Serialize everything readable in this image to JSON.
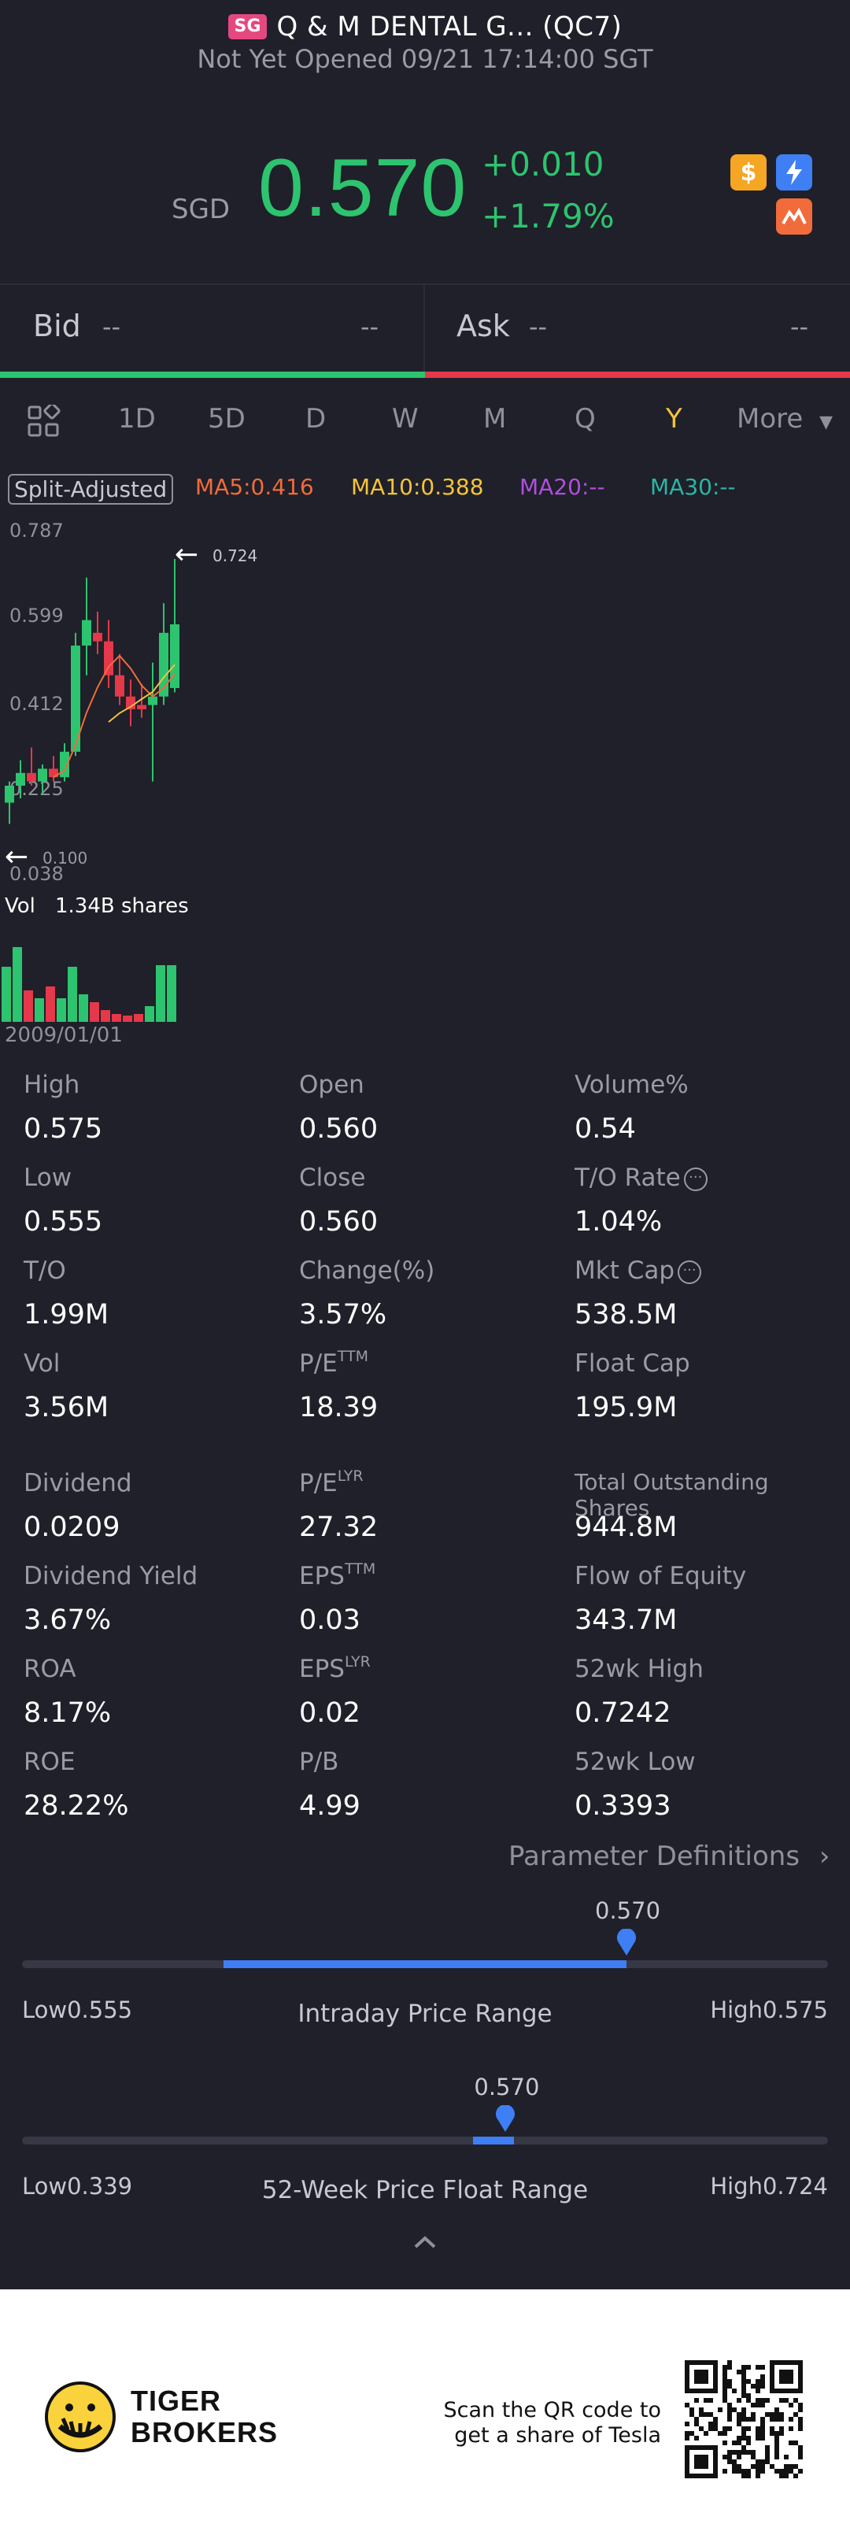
{
  "header": {
    "market_badge": "SG",
    "title": "Q & M DENTAL G... (QC7)",
    "status": "Not Yet Opened 09/21 17:14:00 SGT",
    "currency": "SGD",
    "price": "0.570",
    "change": "+0.010",
    "change_pct": "+1.79%",
    "icons": [
      "dollar-icon",
      "flash-icon",
      "options-icon"
    ]
  },
  "quote": {
    "bid_label": "Bid",
    "bid_price": "--",
    "bid_size": "--",
    "ask_label": "Ask",
    "ask_price": "--",
    "ask_size": "--",
    "bid_color": "#2dc46f",
    "ask_color": "#e5384a"
  },
  "tabs": {
    "items": [
      "1D",
      "5D",
      "D",
      "W",
      "M",
      "Q",
      "Y"
    ],
    "active": "Y",
    "more_label": "More"
  },
  "indicators": {
    "split_label": "Split-Adjusted",
    "ma5": "MA5:0.416",
    "ma10": "MA10:0.388",
    "ma20": "MA20:--",
    "ma30": "MA30:--",
    "ma5_color": "#f26b3a",
    "ma10_color": "#f5c33b",
    "ma20_color": "#b04ee0",
    "ma30_color": "#2bb5a5"
  },
  "chart": {
    "y_labels": [
      "0.787",
      "0.599",
      "0.412",
      "0.225",
      "0.038"
    ],
    "max_marker": "0.724",
    "min_marker": "0.100",
    "vol_label": "Vol",
    "vol_value": "1.34B shares",
    "start_date": "2009/01/01"
  },
  "chart_data": {
    "type": "candlestick",
    "ylim": [
      0.038,
      0.787
    ],
    "candles": [
      {
        "o": 0.15,
        "h": 0.2,
        "l": 0.1,
        "c": 0.19,
        "up": true
      },
      {
        "o": 0.19,
        "h": 0.25,
        "l": 0.16,
        "c": 0.22,
        "up": true
      },
      {
        "o": 0.22,
        "h": 0.28,
        "l": 0.19,
        "c": 0.2,
        "up": false
      },
      {
        "o": 0.2,
        "h": 0.24,
        "l": 0.17,
        "c": 0.23,
        "up": true
      },
      {
        "o": 0.23,
        "h": 0.26,
        "l": 0.2,
        "c": 0.21,
        "up": false
      },
      {
        "o": 0.21,
        "h": 0.29,
        "l": 0.2,
        "c": 0.27,
        "up": true
      },
      {
        "o": 0.27,
        "h": 0.55,
        "l": 0.26,
        "c": 0.52,
        "up": true
      },
      {
        "o": 0.52,
        "h": 0.68,
        "l": 0.45,
        "c": 0.58,
        "up": true
      },
      {
        "o": 0.55,
        "h": 0.6,
        "l": 0.5,
        "c": 0.53,
        "up": false
      },
      {
        "o": 0.53,
        "h": 0.58,
        "l": 0.42,
        "c": 0.45,
        "up": false
      },
      {
        "o": 0.45,
        "h": 0.5,
        "l": 0.38,
        "c": 0.4,
        "up": false
      },
      {
        "o": 0.4,
        "h": 0.44,
        "l": 0.33,
        "c": 0.37,
        "up": false
      },
      {
        "o": 0.37,
        "h": 0.43,
        "l": 0.35,
        "c": 0.38,
        "up": false
      },
      {
        "o": 0.38,
        "h": 0.48,
        "l": 0.2,
        "c": 0.4,
        "up": true
      },
      {
        "o": 0.4,
        "h": 0.62,
        "l": 0.38,
        "c": 0.55,
        "up": true
      },
      {
        "o": 0.42,
        "h": 0.724,
        "l": 0.41,
        "c": 0.57,
        "up": true
      }
    ],
    "volume": [
      0.7,
      0.95,
      0.4,
      0.3,
      0.45,
      0.3,
      0.7,
      0.35,
      0.25,
      0.15,
      0.1,
      0.08,
      0.1,
      0.2,
      0.72,
      0.72
    ],
    "up_color": "#2dc46f",
    "down_color": "#e5384a"
  },
  "stats": [
    {
      "label": "High",
      "value": "0.575"
    },
    {
      "label": "Open",
      "value": "0.560"
    },
    {
      "label": "Volume%",
      "value": "0.54"
    },
    {
      "label": "Low",
      "value": "0.555"
    },
    {
      "label": "Close",
      "value": "0.560"
    },
    {
      "label": "T/O Rate",
      "value": "1.04%",
      "info": true
    },
    {
      "label": "T/O",
      "value": "1.99M"
    },
    {
      "label": "Change(%)",
      "value": "3.57%"
    },
    {
      "label": "Mkt Cap",
      "value": "538.5M",
      "info": true
    },
    {
      "label": "Vol",
      "value": "3.56M"
    },
    {
      "label": "P/E",
      "sup": "TTM",
      "value": "18.39"
    },
    {
      "label": "Float Cap",
      "value": "195.9M"
    },
    {
      "label": "Dividend",
      "value": "0.0209"
    },
    {
      "label": "P/E",
      "sup": "LYR",
      "value": "27.32"
    },
    {
      "label": "Total Outstanding Shares",
      "value": "944.8M"
    },
    {
      "label": "Dividend Yield",
      "value": "3.67%"
    },
    {
      "label": "EPS",
      "sup": "TTM",
      "value": "0.03"
    },
    {
      "label": "Flow of Equity",
      "value": "343.7M"
    },
    {
      "label": "ROA",
      "value": "8.17%"
    },
    {
      "label": "EPS",
      "sup": "LYR",
      "value": "0.02"
    },
    {
      "label": "52wk High",
      "value": "0.7242"
    },
    {
      "label": "ROE",
      "value": "28.22%"
    },
    {
      "label": "P/B",
      "value": "4.99"
    },
    {
      "label": "52wk Low",
      "value": "0.3393"
    }
  ],
  "param_definitions": "Parameter Definitions",
  "intraday_range": {
    "current": "0.570",
    "low": "Low0.555",
    "high": "High0.575",
    "title": "Intraday Price Range",
    "fill_start": 0.25,
    "fill_end": 0.75
  },
  "week52_range": {
    "current": "0.570",
    "low": "Low0.339",
    "high": "High0.724",
    "title": "52-Week Price Float Range",
    "fill_start": 0.56,
    "fill_end": 0.61,
    "marker_pos": 0.6
  },
  "footer": {
    "brand_line1": "TIGER",
    "brand_line2": "BROKERS",
    "scan_line1": "Scan the QR code to",
    "scan_line2": "get a share of Tesla"
  }
}
